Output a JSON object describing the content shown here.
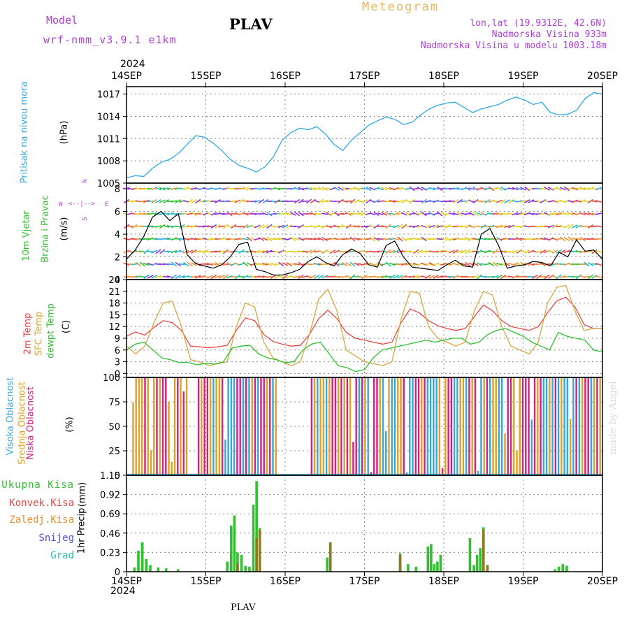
{
  "header": {
    "model_label": "Model",
    "model_name": "wrf-nmm_v3.9.1  e1km",
    "station": "PLAV",
    "title": "Meteogram",
    "coords": "lon,lat (19.9312E, 42.6N)",
    "elev": "Nadmorska Visina 933m",
    "elev_model": "Nadmorska Visina u modelu 1003.18m"
  },
  "footer": {
    "station": "PLAV",
    "credit": "made by Angel"
  },
  "x_axis": {
    "year": "2024",
    "labels": [
      "14SEP",
      "15SEP",
      "16SEP",
      "17SEP",
      "18SEP",
      "19SEP",
      "20SEP"
    ]
  },
  "colors": {
    "pressure": "#2ea8e6",
    "t2m": "#e84848",
    "tsfc": "#d8a840",
    "dewpt": "#30c030",
    "total": "#30c030",
    "conv": "#e84848",
    "froz": "#f09030",
    "snow": "#5050d8",
    "hail": "#20c0c0",
    "high": "#30a8e0",
    "mid": "#e0a020",
    "low": "#d02080"
  },
  "chart_data": [
    {
      "type": "line",
      "name": "pressure",
      "ylabel_a": "Pritisak na nivou mora",
      "ylabel_b": "(hPa)",
      "yticks": [
        "1005",
        "1008",
        "1011",
        "1014",
        "1017"
      ],
      "ylim": [
        1005,
        1018
      ],
      "series": [
        {
          "values": [
            1005.7,
            1006.0,
            1005.9,
            1007.0,
            1007.8,
            1008.2,
            1009.0,
            1010.2,
            1011.4,
            1011.2,
            1010.4,
            1009.4,
            1008.2,
            1007.4,
            1007.0,
            1006.5,
            1007.2,
            1008.6,
            1010.8,
            1011.8,
            1012.4,
            1012.2,
            1012.6,
            1011.6,
            1010.2,
            1009.4,
            1010.8,
            1011.8,
            1012.8,
            1013.4,
            1013.9,
            1013.6,
            1012.9,
            1013.2,
            1014.2,
            1015.0,
            1015.5,
            1015.8,
            1015.9,
            1015.2,
            1014.5,
            1015.0,
            1015.3,
            1015.6,
            1016.2,
            1016.6,
            1016.2,
            1015.6,
            1015.9,
            1014.5,
            1014.2,
            1014.3,
            1014.8,
            1016.4,
            1017.2,
            1017.0
          ]
        }
      ]
    },
    {
      "type": "line",
      "name": "wind",
      "ylabel_a": "10m Vjetar",
      "ylabel_b": "Brzina i Pravac",
      "ylabel_c": "(m/s)",
      "compass_w": "W",
      "compass_e": "E",
      "compass_n": "N",
      "compass_s": "S",
      "yticks": [
        "0",
        "2",
        "4",
        "6",
        "8"
      ],
      "ylim": [
        0,
        8.5
      ],
      "series": [
        {
          "values": [
            1.8,
            2.6,
            3.8,
            5.5,
            6.0,
            5.2,
            5.8,
            2.2,
            1.4,
            1.2,
            1.0,
            1.3,
            2.0,
            3.1,
            3.3,
            0.9,
            0.7,
            0.4,
            0.4,
            0.6,
            0.9,
            1.6,
            2.0,
            1.5,
            1.2,
            2.2,
            2.7,
            2.3,
            1.3,
            1.1,
            3.0,
            3.4,
            2.0,
            1.1,
            1.0,
            0.9,
            0.8,
            1.3,
            1.7,
            1.2,
            1.1,
            4.0,
            4.5,
            3.0,
            1.0,
            1.2,
            1.3,
            1.6,
            1.5,
            1.2,
            2.4,
            2.0,
            3.5,
            2.5,
            2.6,
            1.8
          ]
        }
      ]
    },
    {
      "type": "line",
      "name": "temperature",
      "ylabel_a": "2m Temp",
      "ylabel_b": "SFC Temp",
      "ylabel_c": "dewpt Temp",
      "ylabel_d": "(C)",
      "yticks": [
        "0",
        "3",
        "6",
        "9",
        "12",
        "15",
        "18",
        "21",
        "24"
      ],
      "ylim": [
        -1,
        24
      ],
      "series": [
        {
          "name": "2m Temp",
          "values": [
            9.5,
            10.6,
            9.8,
            11.8,
            13.5,
            13.0,
            11.0,
            7.0,
            6.8,
            6.6,
            6.8,
            7.2,
            11.0,
            14.2,
            13.5,
            10.0,
            8.2,
            7.5,
            7.0,
            7.2,
            10.0,
            14.0,
            16.2,
            14.0,
            10.5,
            9.0,
            8.5,
            8.0,
            7.5,
            8.0,
            13.0,
            16.5,
            15.5,
            13.5,
            12.2,
            11.5,
            11.0,
            11.5,
            14.5,
            17.5,
            16.0,
            13.5,
            12.0,
            11.5,
            11.0,
            12.0,
            15.5,
            18.5,
            19.5,
            17.0,
            12.5,
            11.5,
            11.5
          ]
        },
        {
          "name": "SFC Temp",
          "values": [
            7.0,
            5.0,
            7.0,
            13.0,
            18.0,
            18.5,
            12.0,
            3.5,
            3.0,
            2.0,
            2.5,
            3.0,
            12.0,
            18.0,
            17.0,
            8.0,
            4.0,
            3.0,
            2.0,
            3.0,
            10.0,
            19.0,
            21.5,
            16.0,
            6.0,
            4.5,
            3.0,
            2.5,
            2.0,
            3.0,
            14.0,
            21.0,
            20.5,
            12.0,
            9.0,
            8.0,
            7.0,
            8.0,
            16.0,
            21.0,
            20.0,
            12.0,
            7.0,
            6.0,
            5.0,
            8.0,
            18.0,
            22.0,
            22.5,
            16.0,
            11.0,
            11.5,
            11.5
          ]
        },
        {
          "name": "dewpt Temp",
          "values": [
            6.0,
            7.5,
            8.0,
            6.0,
            4.0,
            3.5,
            2.8,
            2.8,
            2.2,
            2.6,
            2.4,
            3.0,
            6.5,
            7.0,
            7.2,
            5.0,
            4.0,
            3.5,
            2.8,
            3.0,
            6.0,
            7.5,
            8.0,
            5.0,
            2.0,
            1.5,
            0.5,
            1.0,
            4.0,
            6.0,
            6.5,
            7.0,
            7.5,
            8.0,
            8.5,
            8.0,
            8.5,
            9.0,
            9.0,
            7.5,
            8.0,
            10.0,
            11.0,
            11.5,
            10.5,
            9.5,
            8.0,
            7.0,
            6.0,
            10.5,
            9.5,
            9.0,
            8.5,
            6.0,
            5.5
          ]
        }
      ]
    },
    {
      "type": "bar",
      "name": "clouds",
      "ylabel_a": "Visoka Oblacnost",
      "ylabel_b": "Srednja Oblacnost",
      "ylabel_c": "Niska Oblacnost",
      "ylabel_d": "(%)",
      "yticks": [
        "0",
        "25",
        "50",
        "75",
        "100"
      ],
      "ylim": [
        0,
        100
      ],
      "note": "alternating high/mid/low cloud cover fraction per output step"
    },
    {
      "type": "bar",
      "name": "precip",
      "legend": [
        "Ukupna Kisa",
        "Konvek.Kisa",
        "Zaledj.Kisa",
        "Snijeg",
        "Grad"
      ],
      "ylabel_a": "1hr Precip",
      "ylabel_b": "(mm)",
      "yticks": [
        "0",
        "0.23",
        "0.46",
        "0.69",
        "0.92",
        "1.15"
      ],
      "ylim": [
        0,
        1.15
      ],
      "series": [
        {
          "name": "Ukupna Kisa",
          "points": [
            [
              0.1,
              0.05
            ],
            [
              0.15,
              0.25
            ],
            [
              0.2,
              0.35
            ],
            [
              0.25,
              0.15
            ],
            [
              0.3,
              0.08
            ],
            [
              0.4,
              0.05
            ],
            [
              0.5,
              0.04
            ],
            [
              0.65,
              0.03
            ],
            [
              1.27,
              0.12
            ],
            [
              1.32,
              0.55
            ],
            [
              1.36,
              0.67
            ],
            [
              1.4,
              0.23
            ],
            [
              1.45,
              0.2
            ],
            [
              1.5,
              0.07
            ],
            [
              1.55,
              0.06
            ],
            [
              1.6,
              0.8
            ],
            [
              1.64,
              1.08
            ],
            [
              1.68,
              0.52
            ],
            [
              2.53,
              0.17
            ],
            [
              2.57,
              0.35
            ],
            [
              3.45,
              0.22
            ],
            [
              3.55,
              0.09
            ],
            [
              3.65,
              0.06
            ],
            [
              3.8,
              0.3
            ],
            [
              3.84,
              0.33
            ],
            [
              3.88,
              0.09
            ],
            [
              3.92,
              0.12
            ],
            [
              3.96,
              0.2
            ],
            [
              4.33,
              0.4
            ],
            [
              4.38,
              0.08
            ],
            [
              4.42,
              0.2
            ],
            [
              4.46,
              0.28
            ],
            [
              4.5,
              0.53
            ],
            [
              4.55,
              0.08
            ],
            [
              5.4,
              0.03
            ],
            [
              5.45,
              0.06
            ],
            [
              5.5,
              0.09
            ],
            [
              5.55,
              0.07
            ]
          ]
        },
        {
          "name": "Konvek.Kisa",
          "points": [
            [
              1.4,
              0.1
            ],
            [
              1.64,
              0.4
            ],
            [
              1.68,
              0.5
            ],
            [
              2.57,
              0.35
            ],
            [
              3.45,
              0.2
            ],
            [
              4.5,
              0.5
            ],
            [
              4.55,
              0.08
            ]
          ]
        }
      ]
    }
  ]
}
